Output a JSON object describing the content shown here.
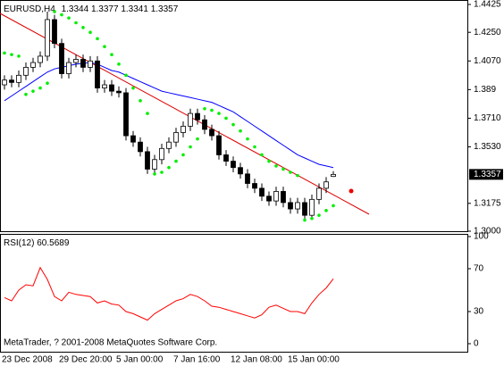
{
  "chart_data": [
    {
      "type": "candlestick",
      "title": "EURUSD,H4",
      "categories": [
        "23 Dec 2008",
        null,
        null,
        null,
        null,
        null,
        null,
        null,
        "29 Dec 20:00",
        null,
        null,
        null,
        null,
        null,
        null,
        null,
        "5 Jan 00:00",
        null,
        null,
        null,
        null,
        null,
        null,
        null,
        "7 Jan 16:00",
        null,
        null,
        null,
        null,
        null,
        null,
        null,
        "12 Jan 08:00",
        null,
        null,
        null,
        null,
        null,
        null,
        null,
        "15 Jan 00:00",
        null,
        null,
        null,
        null,
        null,
        null
      ],
      "open": [
        1.392,
        1.395,
        1.3935,
        1.398,
        1.403,
        1.406,
        1.41,
        1.433,
        1.418,
        1.399,
        1.406,
        1.408,
        1.403,
        1.407,
        1.39,
        1.392,
        1.388,
        1.387,
        1.36,
        1.356,
        1.35,
        1.339,
        1.345,
        1.352,
        1.356,
        1.362,
        1.366,
        1.374,
        1.37,
        1.364,
        1.36,
        1.348,
        1.344,
        1.34,
        1.336,
        1.33,
        1.327,
        1.322,
        1.319,
        1.325,
        1.318,
        1.314,
        1.318,
        1.31,
        1.32,
        1.327,
        1.3344
      ],
      "high": [
        1.398,
        1.398,
        1.401,
        1.406,
        1.409,
        1.413,
        1.438,
        1.436,
        1.421,
        1.409,
        1.411,
        1.411,
        1.41,
        1.41,
        1.395,
        1.395,
        1.391,
        1.39,
        1.363,
        1.359,
        1.353,
        1.348,
        1.355,
        1.359,
        1.365,
        1.369,
        1.377,
        1.377,
        1.373,
        1.367,
        1.363,
        1.351,
        1.347,
        1.343,
        1.339,
        1.333,
        1.33,
        1.325,
        1.328,
        1.328,
        1.321,
        1.321,
        1.321,
        1.323,
        1.33,
        1.334,
        1.3377
      ],
      "low": [
        1.389,
        1.3905,
        1.3905,
        1.395,
        1.4,
        1.403,
        1.407,
        1.415,
        1.396,
        1.396,
        1.403,
        1.4,
        1.4,
        1.387,
        1.387,
        1.385,
        1.384,
        1.357,
        1.353,
        1.347,
        1.336,
        1.336,
        1.342,
        1.349,
        1.353,
        1.359,
        1.363,
        1.367,
        1.361,
        1.357,
        1.345,
        1.341,
        1.337,
        1.333,
        1.327,
        1.324,
        1.319,
        1.316,
        1.316,
        1.315,
        1.311,
        1.311,
        1.307,
        1.307,
        1.317,
        1.324,
        1.3341
      ],
      "close": [
        1.395,
        1.3935,
        1.398,
        1.403,
        1.406,
        1.41,
        1.433,
        1.418,
        1.399,
        1.406,
        1.408,
        1.403,
        1.407,
        1.39,
        1.392,
        1.388,
        1.387,
        1.36,
        1.356,
        1.35,
        1.339,
        1.345,
        1.352,
        1.356,
        1.362,
        1.366,
        1.374,
        1.37,
        1.364,
        1.36,
        1.348,
        1.344,
        1.34,
        1.336,
        1.33,
        1.327,
        1.322,
        1.319,
        1.325,
        1.318,
        1.314,
        1.318,
        1.31,
        1.32,
        1.327,
        1.331,
        1.3357
      ],
      "ma": {
        "color": "#0000ff",
        "values": [
          1.382,
          1.385,
          1.388,
          1.391,
          1.394,
          1.397,
          1.4,
          1.402,
          1.403,
          1.404,
          1.405,
          1.4055,
          1.406,
          1.405,
          1.403,
          1.401,
          1.4,
          1.398,
          1.396,
          1.394,
          1.392,
          1.39,
          1.388,
          1.387,
          1.386,
          1.385,
          1.384,
          1.383,
          1.382,
          1.381,
          1.379,
          1.377,
          1.375,
          1.372,
          1.369,
          1.366,
          1.363,
          1.36,
          1.357,
          1.354,
          1.351,
          1.348,
          1.346,
          1.344,
          1.342,
          1.341,
          1.34
        ]
      },
      "sar": {
        "color": "#00ee00",
        "values": [
          1.412,
          1.411,
          1.41,
          1.386,
          1.388,
          1.39,
          1.393,
          1.438,
          1.436,
          1.434,
          1.431,
          1.428,
          1.425,
          1.421,
          1.416,
          1.411,
          1.405,
          1.398,
          1.39,
          1.382,
          1.374,
          1.336,
          1.337,
          1.34,
          1.344,
          1.348,
          1.353,
          1.358,
          1.377,
          1.376,
          1.374,
          1.371,
          1.367,
          1.363,
          1.358,
          1.353,
          1.348,
          1.344,
          1.341,
          1.339,
          1.337,
          1.335,
          1.307,
          1.308,
          1.31,
          1.313,
          1.316
        ]
      },
      "ylim": [
        1.3,
        1.4425
      ],
      "yticks": [
        1.4425,
        {
          "value": 1.425,
          "label": "1.4250"
        },
        {
          "value": 1.407,
          "label": "1.4070"
        },
        1.389,
        {
          "value": 1.371,
          "label": "1.3710"
        },
        {
          "value": 1.353,
          "label": "1.3530"
        },
        1.3175,
        {
          "value": 1.3,
          "label": "1.3000"
        }
      ]
    },
    {
      "type": "line",
      "title": "RSI(12)",
      "color": "#ff0000",
      "values": [
        43,
        40,
        50,
        55,
        54,
        71,
        60,
        44,
        40,
        48,
        46,
        45,
        44,
        38,
        40,
        37,
        36,
        30,
        28,
        25,
        22,
        28,
        32,
        36,
        40,
        42,
        46,
        44,
        40,
        35,
        34,
        32,
        30,
        28,
        26,
        24,
        27,
        34,
        36,
        33,
        30,
        30,
        28,
        38,
        46,
        52,
        60.5689
      ],
      "ylim": [
        0,
        100
      ],
      "yticks": [
        100,
        70,
        30,
        0
      ]
    }
  ],
  "footer": "MetaTrader, ? 2001-2008 MetaQuotes Software Corp."
}
